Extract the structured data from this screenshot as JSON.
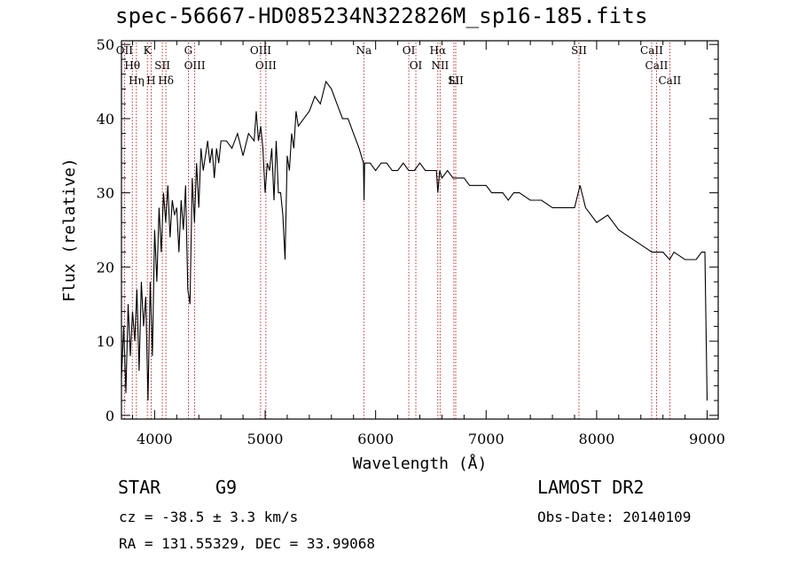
{
  "title": "spec-56667-HD085234N322826M_sp16-185.fits",
  "info": {
    "class": "STAR",
    "subclass": "G9",
    "survey": "LAMOST DR2",
    "cz": "cz = -38.5 ± 3.3 km/s",
    "obs_date": "Obs-Date: 20140109",
    "coords": "RA = 131.55329, DEC =  33.99068"
  },
  "chart_data": {
    "type": "line",
    "title": "spec-56667-HD085234N322826M_sp16-185.fits",
    "xlabel": "Wavelength (Å)",
    "ylabel": "Flux (relative)",
    "xlim": [
      3700,
      9100
    ],
    "ylim": [
      -0.5,
      50.5
    ],
    "xticks": [
      4000,
      5000,
      6000,
      7000,
      8000,
      9000
    ],
    "yticks": [
      0,
      10,
      20,
      30,
      40,
      50
    ],
    "grid": false,
    "series": [
      {
        "x": [
          3700,
          3720,
          3740,
          3760,
          3780,
          3800,
          3820,
          3840,
          3860,
          3880,
          3900,
          3920,
          3940,
          3960,
          3980,
          4000,
          4020,
          4040,
          4060,
          4080,
          4100,
          4120,
          4140,
          4160,
          4180,
          4200,
          4220,
          4240,
          4260,
          4280,
          4300,
          4320,
          4340,
          4360,
          4380,
          4400,
          4420,
          4440,
          4460,
          4480,
          4500,
          4520,
          4540,
          4560,
          4580,
          4600,
          4650,
          4700,
          4750,
          4800,
          4850,
          4900,
          4920,
          4940,
          4960,
          4980,
          5000,
          5020,
          5040,
          5060,
          5080,
          5100,
          5120,
          5140,
          5160,
          5180,
          5200,
          5220,
          5240,
          5260,
          5280,
          5300,
          5350,
          5400,
          5450,
          5500,
          5550,
          5600,
          5650,
          5700,
          5750,
          5800,
          5850,
          5890,
          5895,
          5900,
          5950,
          6000,
          6050,
          6100,
          6150,
          6200,
          6250,
          6300,
          6350,
          6400,
          6450,
          6500,
          6550,
          6563,
          6580,
          6600,
          6650,
          6700,
          6750,
          6800,
          6850,
          6900,
          6950,
          7000,
          7050,
          7100,
          7150,
          7200,
          7250,
          7300,
          7400,
          7500,
          7600,
          7700,
          7800,
          7850,
          7900,
          8000,
          8100,
          8200,
          8300,
          8400,
          8500,
          8540,
          8600,
          8660,
          8700,
          8800,
          8900,
          8950,
          8980,
          9000
        ],
        "values": [
          5,
          12,
          3,
          15,
          8,
          14,
          10,
          17,
          6,
          18,
          12,
          16,
          2,
          18,
          8,
          25,
          18,
          28,
          22,
          30,
          26,
          31,
          24,
          29,
          27,
          28,
          22,
          29,
          25,
          31,
          17,
          15,
          32,
          26,
          34,
          28,
          36,
          33,
          35,
          37,
          34,
          36,
          32,
          36,
          34,
          37,
          37,
          36,
          38,
          35,
          38,
          37,
          41,
          37,
          39,
          36,
          30,
          34,
          33,
          36,
          29,
          37,
          30,
          30,
          27,
          21,
          35,
          33,
          38,
          36,
          41,
          39,
          40,
          41,
          43,
          42,
          45,
          44,
          42,
          40,
          40,
          38,
          36,
          34,
          29,
          34,
          34,
          33,
          34,
          34,
          33,
          33,
          34,
          33,
          33,
          34,
          33,
          33,
          33,
          30,
          33,
          32,
          33,
          32,
          32,
          32,
          31,
          31,
          31,
          31,
          30,
          30,
          30,
          29,
          30,
          30,
          29,
          29,
          28,
          28,
          28,
          31,
          28,
          26,
          27,
          25,
          24,
          23,
          22,
          22,
          22,
          21,
          22,
          21,
          21,
          22,
          22,
          2
        ]
      }
    ],
    "lines": [
      {
        "label": "OII",
        "x": 3727
      },
      {
        "label": "Hθ",
        "x": 3798
      },
      {
        "label": "Hη",
        "x": 3835
      },
      {
        "label": "K",
        "x": 3934
      },
      {
        "label": "H",
        "x": 3968
      },
      {
        "label": "SII",
        "x": 4070
      },
      {
        "label": "Hδ",
        "x": 4102
      },
      {
        "label": "G",
        "x": 4305
      },
      {
        "label": "OIII",
        "x": 4363
      },
      {
        "label": "OIII",
        "x": 4959
      },
      {
        "label": "OIII",
        "x": 5007
      },
      {
        "label": "Na",
        "x": 5893
      },
      {
        "label": "OI",
        "x": 6300
      },
      {
        "label": "OI",
        "x": 6364
      },
      {
        "label": "Hα",
        "x": 6563
      },
      {
        "label": "NII",
        "x": 6583
      },
      {
        "label": "Li",
        "x": 6708
      },
      {
        "label": "SII",
        "x": 6725
      },
      {
        "label": "SII",
        "x": 7840
      },
      {
        "label": "CaII",
        "x": 8498
      },
      {
        "label": "CaII",
        "x": 8542
      },
      {
        "label": "CaII",
        "x": 8662
      }
    ]
  }
}
